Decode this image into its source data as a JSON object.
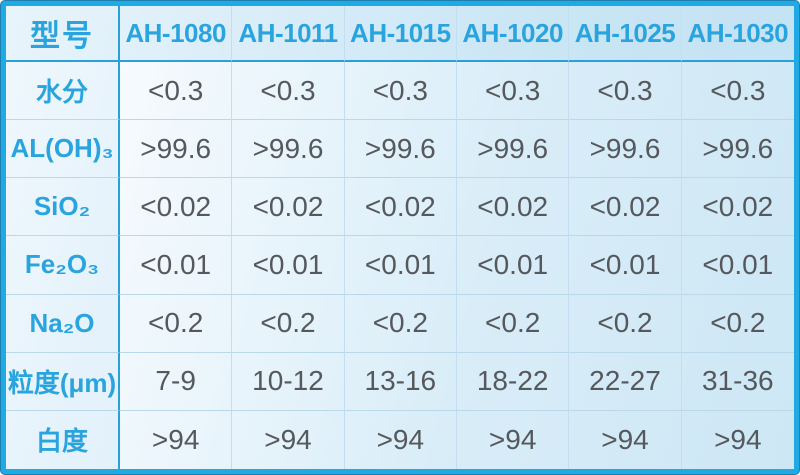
{
  "colors": {
    "accent_text": "#2aa4de",
    "border_cyan": "#1faae3",
    "border_dark": "#1d7fb0",
    "grid_line_strong": "#2a9fd8",
    "grid_line_light": "#c3def0",
    "value_text": "#55585c",
    "cell_background": "#ddeef9"
  },
  "table": {
    "corner_label": "型号",
    "columns": [
      "AH-1080",
      "AH-1011",
      "AH-1015",
      "AH-1020",
      "AH-1025",
      "AH-1030"
    ],
    "rows": [
      {
        "label": "水分",
        "values": [
          "<0.3",
          "<0.3",
          "<0.3",
          "<0.3",
          "<0.3",
          "<0.3"
        ]
      },
      {
        "label": "AL(OH)₃",
        "values": [
          ">99.6",
          ">99.6",
          ">99.6",
          ">99.6",
          ">99.6",
          ">99.6"
        ]
      },
      {
        "label": "SiO₂",
        "values": [
          "<0.02",
          "<0.02",
          "<0.02",
          "<0.02",
          "<0.02",
          "<0.02"
        ]
      },
      {
        "label": "Fe₂O₃",
        "values": [
          "<0.01",
          "<0.01",
          "<0.01",
          "<0.01",
          "<0.01",
          "<0.01"
        ]
      },
      {
        "label": "Na₂O",
        "values": [
          "<0.2",
          "<0.2",
          "<0.2",
          "<0.2",
          "<0.2",
          "<0.2"
        ]
      },
      {
        "label": "粒度(μm)",
        "values": [
          "7-9",
          "10-12",
          "13-16",
          "18-22",
          "22-27",
          "31-36"
        ]
      },
      {
        "label": "白度",
        "values": [
          ">94",
          ">94",
          ">94",
          ">94",
          ">94",
          ">94"
        ]
      }
    ]
  }
}
